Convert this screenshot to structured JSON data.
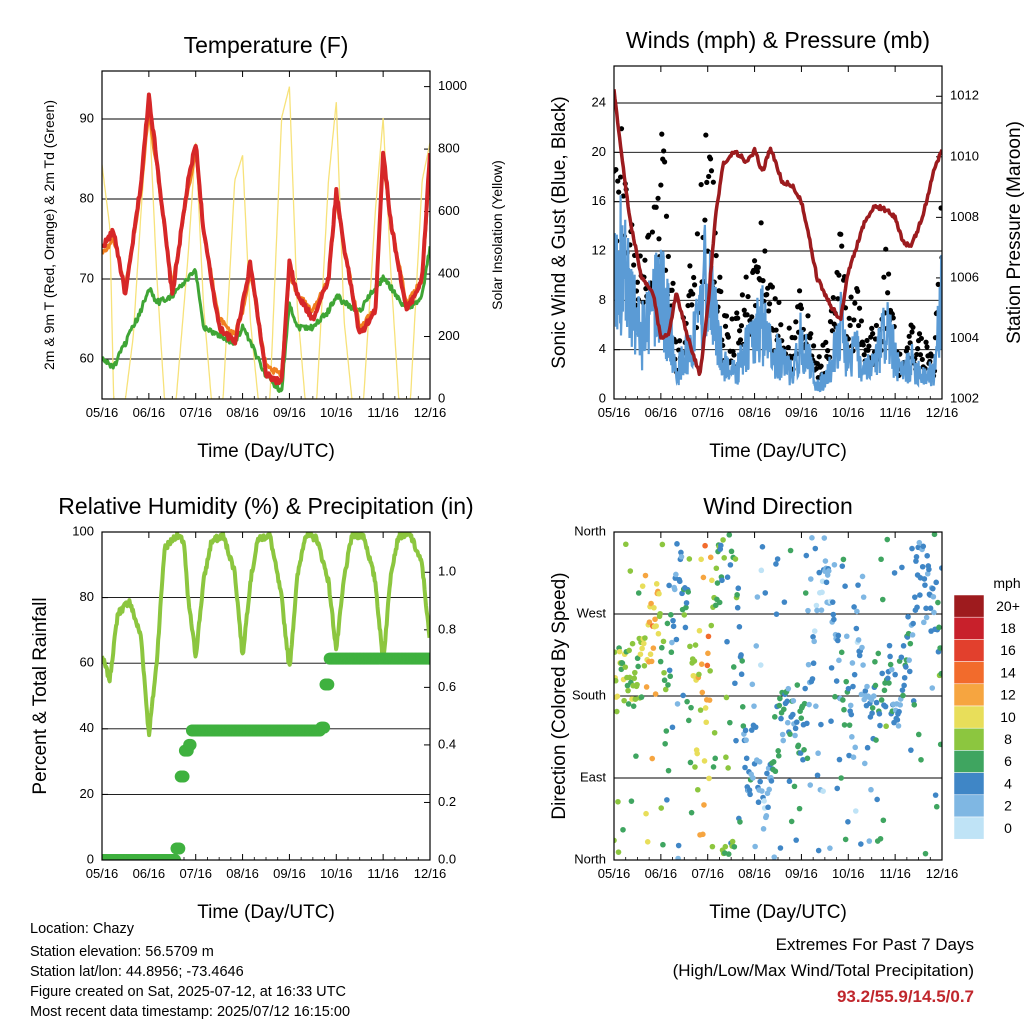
{
  "station_info": {
    "location": "Location: Chazy",
    "elevation": "Station elevation: 56.5709 m",
    "latlon": "Station lat/lon: 44.8956; -73.4646",
    "created": "Figure created on Sat, 2025-07-12, at 16:33 UTC",
    "latest": "Most recent data timestamp: 2025/07/12 16:15:00"
  },
  "extremes": {
    "title": "Extremes For Past 7 Days",
    "subtitle": "(High/Low/Max Wind/Total Precipitation)",
    "values": "93.2/55.9/14.5/0.7"
  },
  "colors": {
    "temp_2m": "#d62728",
    "temp_9m": "#f07f1f",
    "dewpoint": "#3fa535",
    "solar": "#f7e27a",
    "wind": "#5b9bd5",
    "gust": "#000000",
    "pressure": "#9c1b1e",
    "rh": "#8cc63f",
    "precip": "#3fb13f"
  },
  "chart_data": [
    {
      "type": "line",
      "title": "Temperature (F)",
      "xlabel": "Time (Day/UTC)",
      "ylabel": "2m & 9m T (Red, Orange) & 2m Td (Green)",
      "y2label": "Solar Insolation (Yellow)",
      "x_ticks": [
        "05/16",
        "06/16",
        "07/16",
        "08/16",
        "09/16",
        "10/16",
        "11/16",
        "12/16"
      ],
      "xlim": [
        "2025-07-05 16:00",
        "2025-07-12 16:00"
      ],
      "ylim": [
        55,
        96
      ],
      "y_ticks": [
        "60",
        "70",
        "80",
        "90"
      ],
      "y2lim": [
        0,
        1050
      ],
      "y2_ticks": [
        "0",
        "200",
        "400",
        "600",
        "800",
        "1000"
      ],
      "grid_y": true,
      "series": [
        {
          "name": "2m T",
          "axis": "left",
          "color": "#d62728",
          "x": [
            "05/16",
            "05/22",
            "06/04",
            "06/12",
            "06/16",
            "06/20",
            "07/04",
            "07/12",
            "07/16",
            "07/20",
            "08/04",
            "08/12",
            "08/16",
            "08/20",
            "09/04",
            "09/12",
            "09/16",
            "09/20",
            "10/04",
            "10/12",
            "10/16",
            "10/20",
            "11/04",
            "11/12",
            "11/16",
            "11/20",
            "12/04",
            "12/12",
            "12/16"
          ],
          "values": [
            74,
            76,
            68,
            82,
            93,
            85,
            68,
            82,
            87,
            76,
            64,
            62,
            67,
            72,
            58,
            57,
            72,
            68,
            65,
            70,
            81,
            74,
            63,
            66,
            86,
            77,
            66,
            70,
            86
          ]
        },
        {
          "name": "9m T",
          "axis": "left",
          "color": "#f07f1f",
          "x": [
            "05/16",
            "05/22",
            "06/04",
            "06/12",
            "06/16",
            "06/20",
            "07/04",
            "07/12",
            "07/16",
            "07/20",
            "08/04",
            "08/12",
            "08/16",
            "08/20",
            "09/04",
            "09/12",
            "09/16",
            "09/20",
            "10/04",
            "10/12",
            "10/16",
            "10/20",
            "11/04",
            "11/12",
            "11/16",
            "11/20",
            "12/04",
            "12/12",
            "12/16"
          ],
          "values": [
            73,
            75,
            69,
            81,
            91,
            84,
            69,
            81,
            86,
            76,
            65,
            63,
            66,
            71,
            59,
            58,
            71,
            68,
            66,
            70,
            80,
            74,
            64,
            66,
            85,
            77,
            67,
            70,
            84
          ]
        },
        {
          "name": "2m Td",
          "axis": "left",
          "color": "#3fa535",
          "x": [
            "05/16",
            "05/22",
            "06/04",
            "06/12",
            "06/16",
            "06/20",
            "07/04",
            "07/12",
            "07/16",
            "07/20",
            "08/04",
            "08/12",
            "08/16",
            "08/20",
            "09/04",
            "09/12",
            "09/16",
            "09/20",
            "10/04",
            "10/12",
            "10/16",
            "10/20",
            "11/04",
            "11/12",
            "11/16",
            "11/20",
            "12/04",
            "12/12",
            "12/16"
          ],
          "values": [
            60,
            59,
            62,
            66,
            69,
            67,
            68,
            70,
            71,
            64,
            63,
            62,
            64,
            62,
            58,
            56,
            67,
            64,
            64,
            66,
            68,
            67,
            66,
            69,
            70,
            69,
            66,
            68,
            74
          ]
        },
        {
          "name": "Solar Insolation",
          "axis": "right",
          "color": "#f7e27a",
          "x": [
            "05/16",
            "05/20",
            "05/22",
            "06/04",
            "06/08",
            "06/12",
            "06/16",
            "06/20",
            "07/00",
            "07/06",
            "07/12",
            "07/16",
            "07/20",
            "08/00",
            "08/06",
            "08/12",
            "08/16",
            "08/20",
            "09/00",
            "09/06",
            "09/12",
            "09/16",
            "09/20",
            "10/00",
            "10/06",
            "10/12",
            "10/16",
            "10/20",
            "11/00",
            "11/06",
            "11/12",
            "11/16",
            "11/20",
            "12/00",
            "12/06",
            "12/12",
            "12/16"
          ],
          "values": [
            750,
            550,
            0,
            0,
            200,
            600,
            950,
            400,
            0,
            0,
            450,
            820,
            300,
            0,
            0,
            700,
            780,
            250,
            0,
            0,
            900,
            1000,
            300,
            0,
            0,
            700,
            950,
            250,
            0,
            0,
            600,
            900,
            400,
            0,
            0,
            700,
            820
          ]
        }
      ]
    },
    {
      "type": "scatter",
      "title": "Winds (mph) & Pressure (mb)",
      "xlabel": "Time (Day/UTC)",
      "ylabel": "Sonic Wind & Gust (Blue, Black)",
      "y2label": "Station Pressure (Maroon)",
      "x_ticks": [
        "05/16",
        "06/16",
        "07/16",
        "08/16",
        "09/16",
        "10/16",
        "11/16",
        "12/16"
      ],
      "xlim": [
        "2025-07-05 16:00",
        "2025-07-12 16:00"
      ],
      "ylim": [
        0,
        27
      ],
      "y_ticks": [
        "0",
        "4",
        "8",
        "12",
        "16",
        "20",
        "24"
      ],
      "y2lim": [
        1002,
        1013
      ],
      "y2_ticks": [
        "1002",
        "1004",
        "1006",
        "1008",
        "1010",
        "1012"
      ],
      "grid_y": true,
      "series": [
        {
          "name": "Sonic Wind",
          "axis": "left",
          "color": "#5b9bd5",
          "x": [
            "05/16",
            "05/20",
            "06/00",
            "06/06",
            "06/12",
            "06/16",
            "06/20",
            "07/00",
            "07/06",
            "07/12",
            "07/16",
            "07/20",
            "08/00",
            "08/06",
            "08/12",
            "08/16",
            "08/20",
            "09/00",
            "09/06",
            "09/12",
            "09/16",
            "09/20",
            "10/00",
            "10/06",
            "10/12",
            "10/16",
            "10/20",
            "11/00",
            "11/06",
            "11/12",
            "11/16",
            "11/20",
            "12/00",
            "12/06",
            "12/12",
            "12/16"
          ],
          "values": [
            9,
            11,
            8,
            5,
            7,
            9,
            6,
            2,
            4,
            6,
            11,
            6,
            3,
            2,
            4,
            5,
            6,
            4,
            3,
            2,
            5,
            3,
            1,
            2,
            6,
            3,
            4,
            2,
            3,
            6,
            3,
            2,
            3,
            2,
            2,
            9
          ]
        },
        {
          "name": "Gust",
          "axis": "left",
          "color": "#000000",
          "x": [
            "05/16",
            "05/20",
            "06/00",
            "06/06",
            "06/12",
            "06/16",
            "06/20",
            "07/00",
            "07/06",
            "07/12",
            "07/16",
            "07/20",
            "08/00",
            "08/06",
            "08/12",
            "08/16",
            "08/20",
            "09/00",
            "09/06",
            "09/12",
            "09/16",
            "09/20",
            "10/00",
            "10/06",
            "10/12",
            "10/16",
            "10/20",
            "11/00",
            "11/06",
            "11/12",
            "11/16",
            "11/20",
            "12/00",
            "12/06",
            "12/12",
            "12/16"
          ],
          "values": [
            16,
            18,
            12,
            9,
            12,
            18,
            13,
            4,
            8,
            13,
            21,
            12,
            6,
            5,
            9,
            10,
            12,
            8,
            6,
            4,
            9,
            5,
            3,
            4,
            12,
            6,
            8,
            4,
            5,
            11,
            4,
            3,
            5,
            4,
            3,
            14
          ]
        },
        {
          "name": "Station Pressure",
          "axis": "right",
          "color": "#9c1b1e",
          "x": [
            "05/16",
            "05/20",
            "06/00",
            "06/06",
            "06/12",
            "06/16",
            "06/20",
            "07/00",
            "07/06",
            "07/12",
            "07/16",
            "07/20",
            "08/00",
            "08/06",
            "08/12",
            "08/16",
            "08/20",
            "09/00",
            "09/06",
            "09/12",
            "09/16",
            "09/20",
            "10/00",
            "10/06",
            "10/12",
            "10/16",
            "10/20",
            "11/00",
            "11/06",
            "11/12",
            "11/16",
            "11/20",
            "12/00",
            "12/06",
            "12/12",
            "12/16"
          ],
          "values": [
            1012.2,
            1010,
            1008,
            1006,
            1005.5,
            1004,
            1004.2,
            1005.5,
            1004,
            1002.8,
            1005,
            1008,
            1009.8,
            1010.2,
            1009.8,
            1010.2,
            1009.5,
            1010.3,
            1009.2,
            1009,
            1008.5,
            1007.3,
            1006,
            1005.2,
            1004.6,
            1006.2,
            1007,
            1007.8,
            1008.4,
            1008.2,
            1008,
            1007.2,
            1007,
            1008,
            1009.6,
            1010.2
          ]
        }
      ]
    },
    {
      "type": "line",
      "title": "Relative Humidity (%) & Precipitation (in)",
      "xlabel": "Time (Day/UTC)",
      "ylabel": "Percent & Total Rainfall",
      "x_ticks": [
        "05/16",
        "06/16",
        "07/16",
        "08/16",
        "09/16",
        "10/16",
        "11/16",
        "12/16"
      ],
      "xlim": [
        "2025-07-05 16:00",
        "2025-07-12 16:00"
      ],
      "ylim": [
        0,
        100
      ],
      "y_ticks": [
        "0",
        "20",
        "40",
        "60",
        "80",
        "100"
      ],
      "y2lim": [
        0,
        1.14
      ],
      "y2_ticks": [
        "0.0",
        "0.2",
        "0.4",
        "0.6",
        "0.8",
        "1.0"
      ],
      "grid_y": true,
      "series": [
        {
          "name": "Relative Humidity",
          "axis": "left",
          "color": "#8cc63f",
          "x": [
            "05/16",
            "05/20",
            "06/00",
            "06/06",
            "06/12",
            "06/16",
            "06/20",
            "07/00",
            "07/06",
            "07/10",
            "07/12",
            "07/16",
            "07/20",
            "08/00",
            "08/06",
            "08/12",
            "08/16",
            "08/20",
            "09/00",
            "09/06",
            "09/12",
            "09/16",
            "09/20",
            "10/00",
            "10/06",
            "10/12",
            "10/16",
            "10/20",
            "11/00",
            "11/06",
            "11/12",
            "11/16",
            "11/20",
            "12/00",
            "12/06",
            "12/12",
            "12/16"
          ],
          "values": [
            62,
            55,
            75,
            79,
            68,
            38,
            60,
            95,
            99,
            97,
            80,
            62,
            85,
            97,
            99,
            88,
            62,
            85,
            98,
            99,
            80,
            58,
            86,
            99,
            98,
            85,
            64,
            86,
            99,
            99,
            85,
            60,
            88,
            99,
            99,
            90,
            66
          ]
        },
        {
          "name": "Total Precipitation",
          "axis": "right",
          "color": "#3fb13f",
          "x": [
            "05/16",
            "06/00",
            "06/12",
            "07/00",
            "07/06",
            "07/08",
            "07/10",
            "07/12",
            "07/14",
            "08/00",
            "08/12",
            "09/00",
            "09/12",
            "10/00",
            "10/08",
            "10/10",
            "10/12",
            "10/14",
            "11/00",
            "11/12",
            "12/00",
            "12/16"
          ],
          "values": [
            0,
            0,
            0,
            0,
            0.04,
            0.29,
            0.38,
            0.4,
            0.45,
            0.45,
            0.45,
            0.45,
            0.45,
            0.45,
            0.46,
            0.61,
            0.7,
            0.7,
            0.7,
            0.7,
            0.7,
            0.7
          ]
        }
      ]
    },
    {
      "type": "scatter",
      "title": "Wind Direction",
      "xlabel": "Time (Day/UTC)",
      "ylabel": "Direction (Colored By Speed)",
      "x_ticks": [
        "05/16",
        "06/16",
        "07/16",
        "08/16",
        "09/16",
        "10/16",
        "11/16",
        "12/16"
      ],
      "xlim": [
        "2025-07-05 16:00",
        "2025-07-12 16:00"
      ],
      "ylim": [
        0,
        360
      ],
      "y_ticks": [
        "North",
        "East",
        "South",
        "West",
        "North"
      ],
      "grid_y": true,
      "legend": {
        "title": "mph",
        "placement": "right",
        "labels": [
          "20+",
          "18",
          "16",
          "14",
          "12",
          "10",
          "8",
          "6",
          "4",
          "2",
          "0"
        ],
        "colors": [
          "#9e1b1e",
          "#c8202b",
          "#e2402d",
          "#f26b2c",
          "#f6a540",
          "#e8de5a",
          "#8cc63f",
          "#3fa560",
          "#3f86c6",
          "#7fb7e3",
          "#bfe3f6"
        ]
      },
      "series": [
        {
          "name": "Direction",
          "x": [
            "05/16",
            "05/20",
            "06/04",
            "06/12",
            "06/14",
            "06/20",
            "07/00",
            "07/12",
            "07/16",
            "07/20",
            "08/00",
            "08/06",
            "08/12",
            "08/16",
            "08/20",
            "09/04",
            "09/12",
            "09/16",
            "09/20",
            "10/04",
            "10/12",
            "10/16",
            "10/20",
            "11/04",
            "11/12",
            "11/16",
            "11/20",
            "12/04",
            "12/12",
            "12/16"
          ],
          "values": [
            195,
            200,
            205,
            255,
            270,
            200,
            340,
            195,
            190,
            300,
            350,
            345,
            90,
            120,
            60,
            140,
            160,
            130,
            200,
            330,
            200,
            160,
            250,
            150,
            200,
            180,
            200,
            320,
            300,
            190
          ],
          "speeds": [
            9,
            8,
            7,
            12,
            10,
            4,
            3,
            10,
            13,
            5,
            7,
            6,
            4,
            3,
            2,
            5,
            4,
            6,
            3,
            2,
            4,
            5,
            2,
            4,
            6,
            3,
            5,
            4,
            3,
            7
          ]
        }
      ]
    }
  ]
}
